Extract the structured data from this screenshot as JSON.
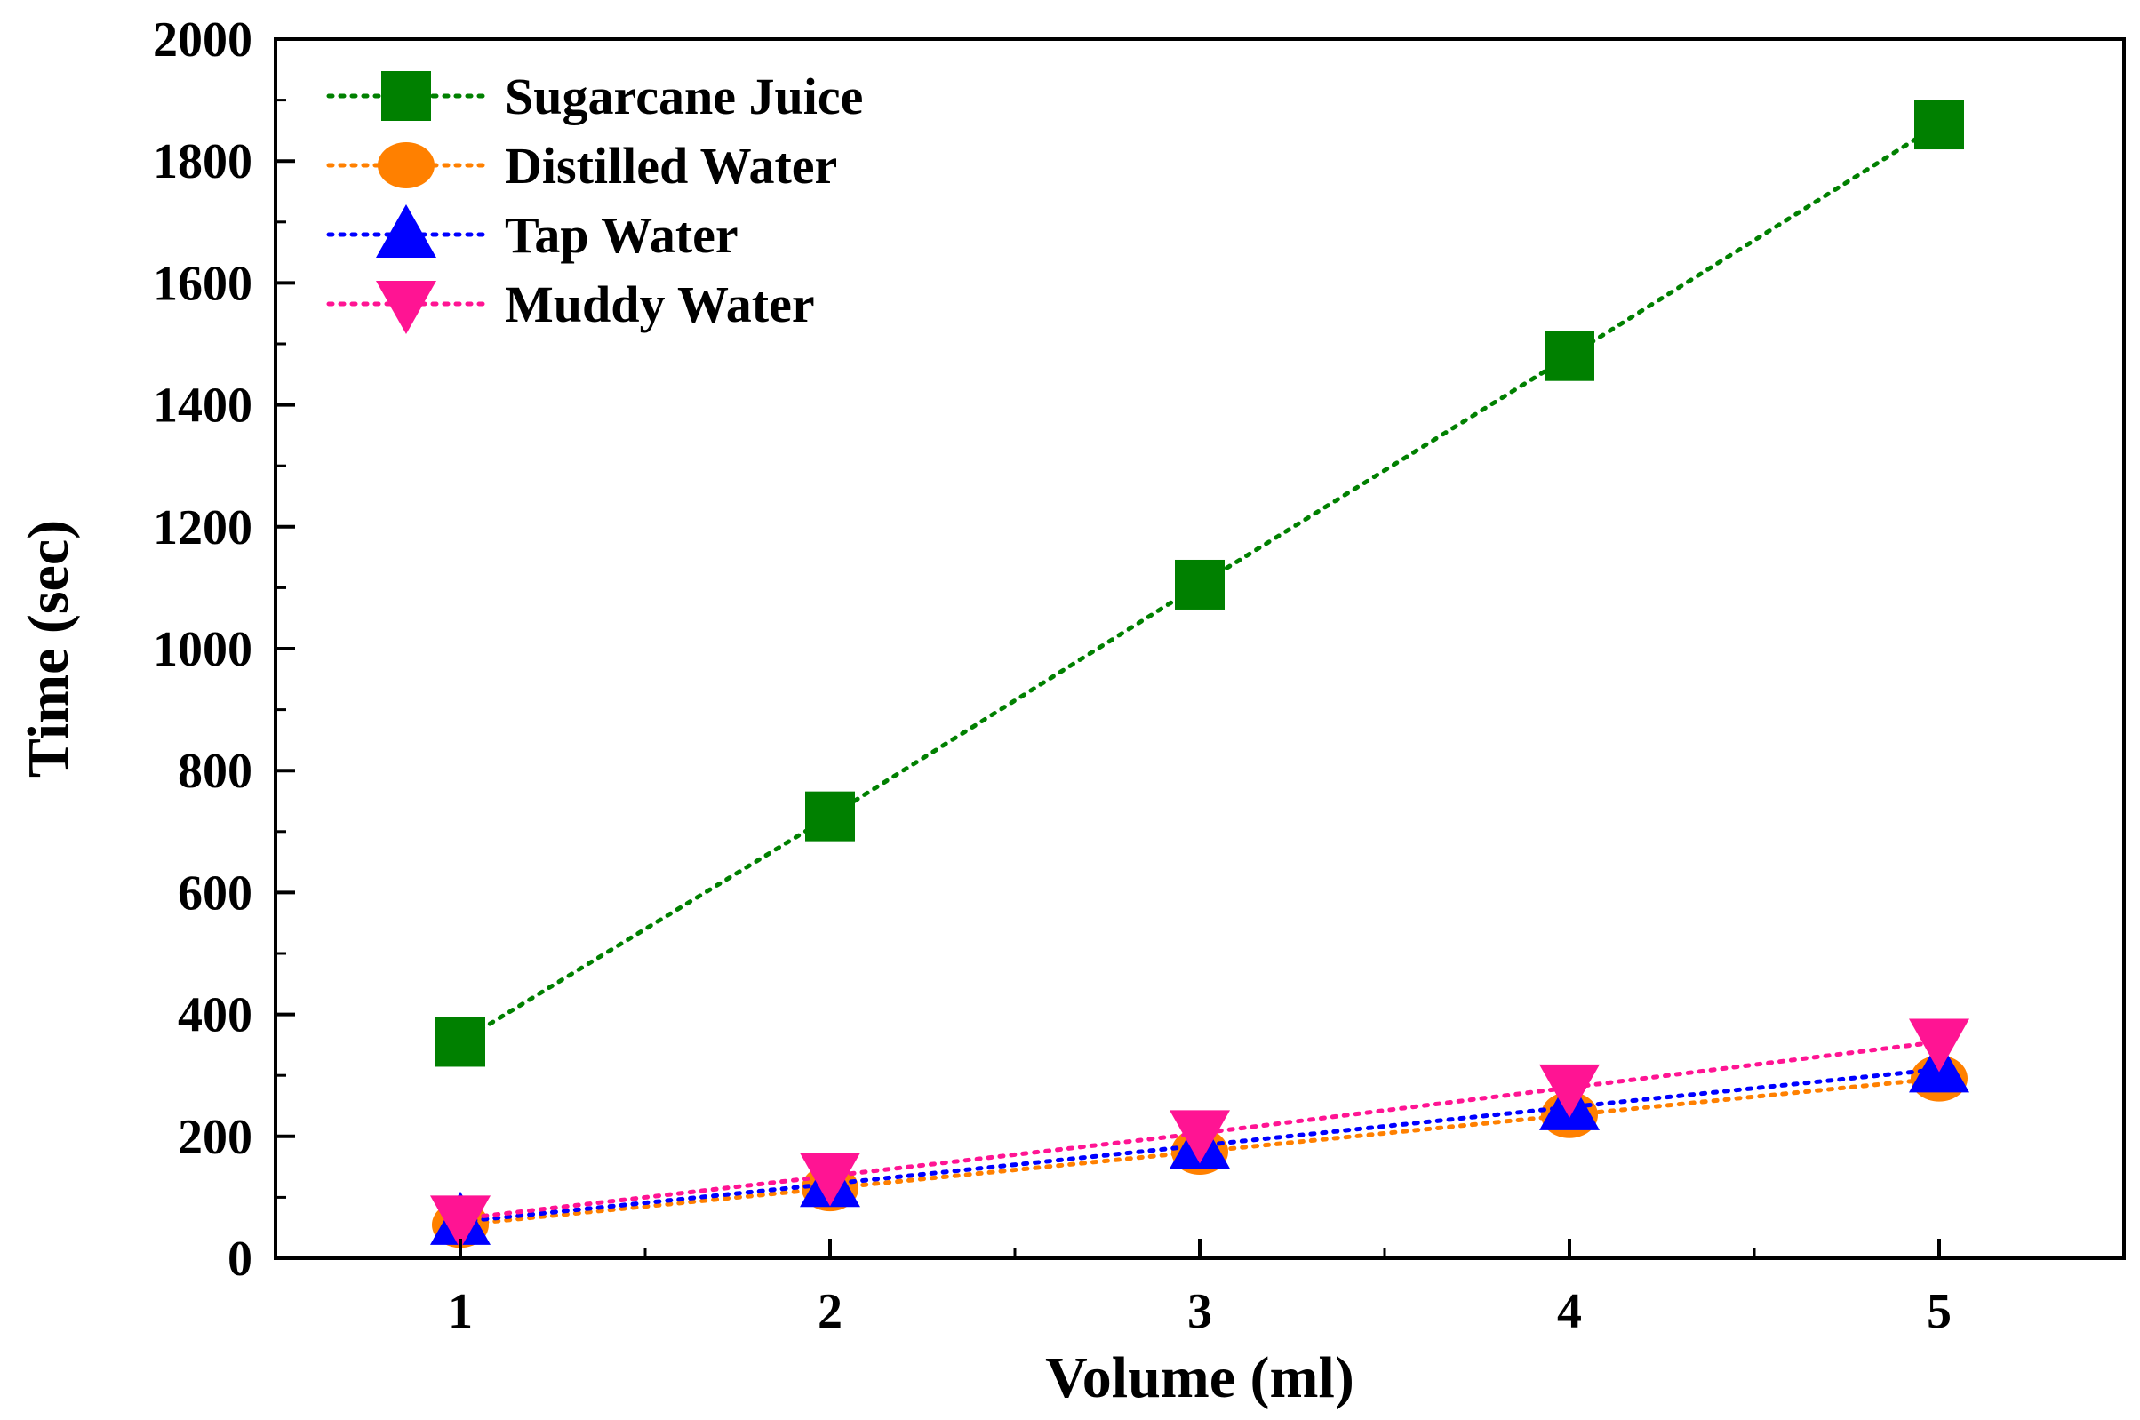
{
  "chart_data": {
    "type": "line",
    "title": "",
    "xlabel": "Volume (ml)",
    "ylabel": "Time (sec)",
    "xlim": [
      0.5,
      5.5
    ],
    "ylim": [
      0,
      2000
    ],
    "x_ticks": [
      "1",
      "2",
      "3",
      "4",
      "5"
    ],
    "y_ticks": [
      "0",
      "200",
      "400",
      "600",
      "800",
      "1000",
      "1200",
      "1400",
      "1600",
      "1800",
      "2000"
    ],
    "grid": false,
    "legend_position": "top-left",
    "x": [
      1,
      2,
      3,
      4,
      5
    ],
    "series": [
      {
        "name": "Sugarcane Juice",
        "values": [
          355,
          725,
          1105,
          1480,
          1860
        ],
        "color": "#008000",
        "marker": "square",
        "line_style": "dotted"
      },
      {
        "name": "Distilled Water",
        "values": [
          55,
          115,
          175,
          235,
          295
        ],
        "color": "#FF8000",
        "marker": "circle",
        "line_style": "dotted"
      },
      {
        "name": "Tap Water",
        "values": [
          60,
          122,
          185,
          248,
          310
        ],
        "color": "#0000FF",
        "marker": "triangle-up",
        "line_style": "dotted"
      },
      {
        "name": "Muddy Water",
        "values": [
          65,
          135,
          205,
          280,
          355
        ],
        "color": "#FF1493",
        "marker": "triangle-down",
        "line_style": "dotted"
      }
    ]
  }
}
